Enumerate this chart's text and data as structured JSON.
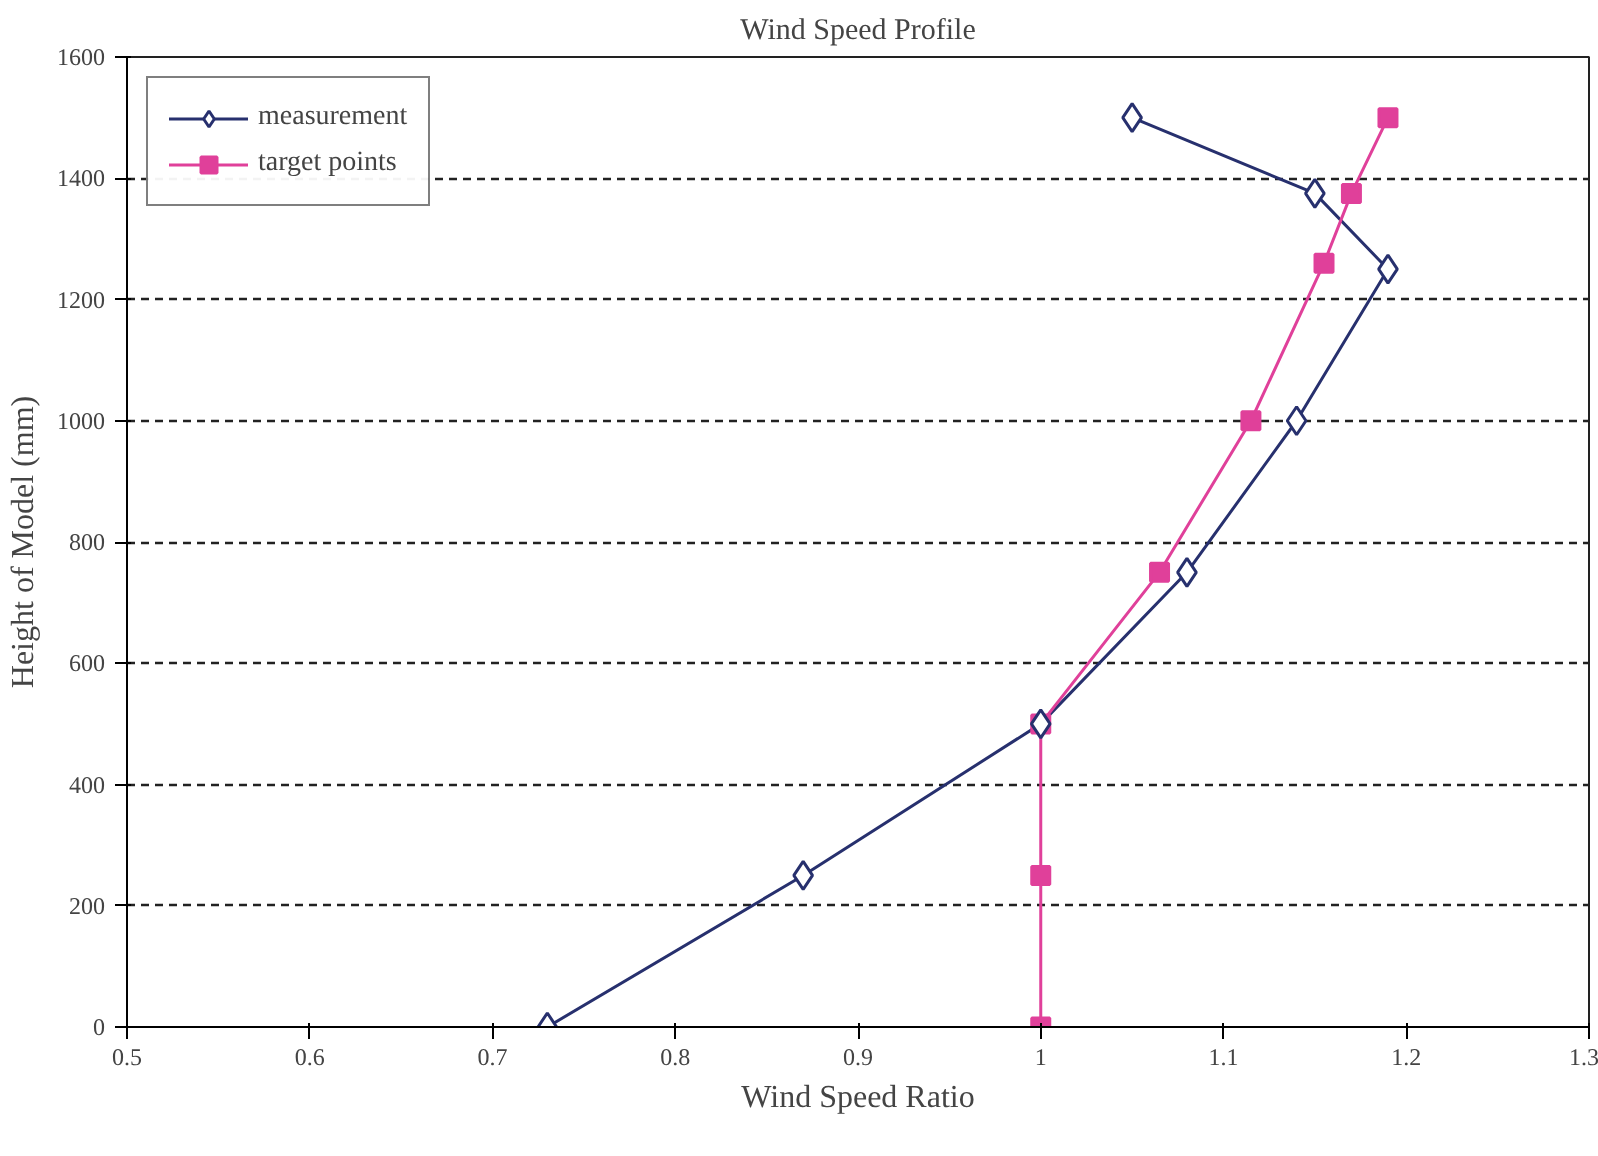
{
  "chart_data": {
    "type": "line",
    "title": "Wind Speed Profile",
    "xlabel": "Wind Speed Ratio",
    "ylabel": "Height of Model (mm)",
    "xlim": [
      0.5,
      1.3
    ],
    "xticks": [
      0.5,
      0.6,
      0.7,
      0.8,
      0.9,
      1,
      1.1,
      1.2,
      1.3
    ],
    "ylim": [
      0,
      1600
    ],
    "yticks": [
      0,
      200,
      400,
      600,
      800,
      1000,
      1200,
      1400,
      1600
    ],
    "grid": "y",
    "legend": "top left",
    "line_style": "solid",
    "series": [
      {
        "name": "measurement",
        "color": "#27306e",
        "marker": "diamond",
        "x": [
          0.73,
          0.87,
          1.0,
          1.08,
          1.14,
          1.19,
          1.15,
          1.05
        ],
        "values": [
          0,
          250,
          500,
          750,
          1000,
          1250,
          1375,
          1500
        ]
      },
      {
        "name": "target points",
        "color": "#e0409a",
        "marker": "square",
        "x": [
          1.0,
          1.0,
          1.0,
          1.065,
          1.115,
          1.155,
          1.17,
          1.19
        ],
        "values": [
          0,
          250,
          500,
          750,
          1000,
          1260,
          1375,
          1500
        ]
      }
    ]
  }
}
